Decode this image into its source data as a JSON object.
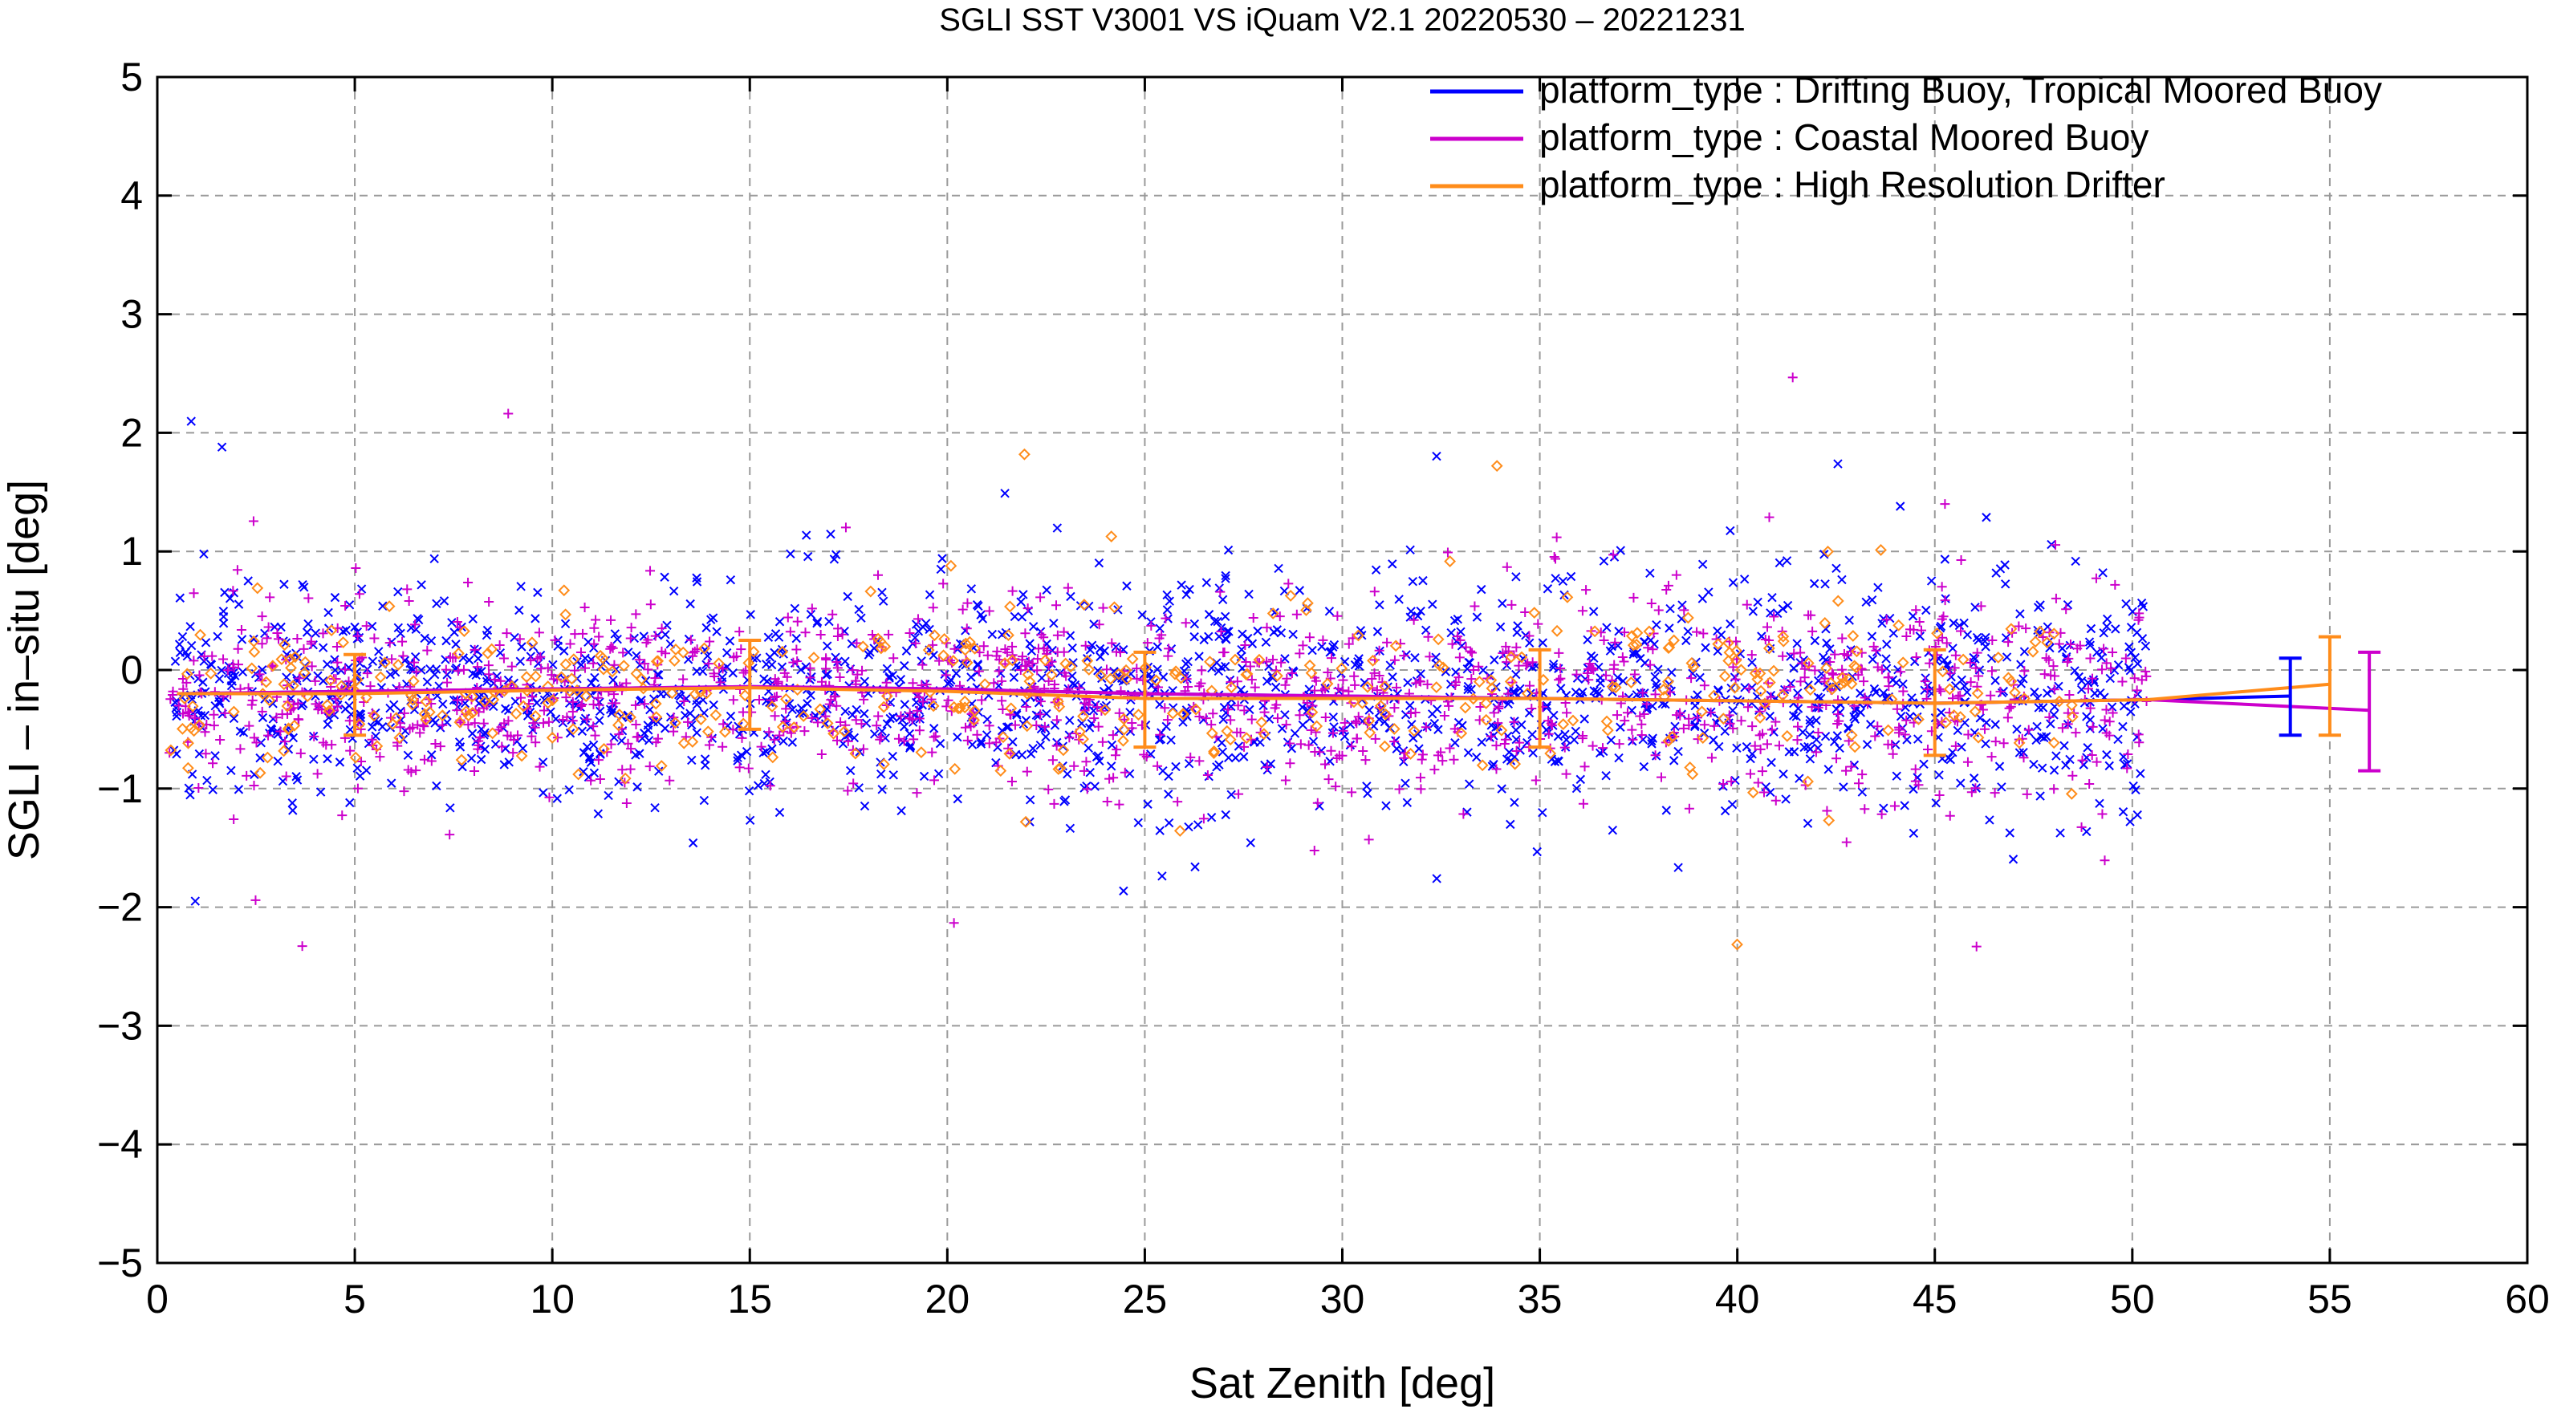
{
  "chart_data": {
    "type": "scatter",
    "title": "SGLI SST V3001 VS iQuam V2.1 20220530 – 20221231",
    "xlabel": "Sat Zenith [deg]",
    "ylabel": "SGLI – in–situ [deg]",
    "xlim": [
      0,
      60
    ],
    "ylim": [
      -5,
      5
    ],
    "xticks": [
      0,
      5,
      10,
      15,
      20,
      25,
      30,
      35,
      40,
      45,
      50,
      55,
      60
    ],
    "yticks": [
      5,
      4,
      3,
      2,
      1,
      0,
      -1,
      -2,
      -3,
      -4,
      -5
    ],
    "xtick_labels": [
      "0",
      "5",
      "10",
      "15",
      "20",
      "25",
      "30",
      "35",
      "40",
      "45",
      "50",
      "55",
      "60"
    ],
    "ytick_labels": [
      "5",
      "4",
      "3",
      "2",
      "1",
      "0",
      "−1",
      "−2",
      "−3",
      "−4",
      "−5"
    ],
    "grid": true,
    "legend_position": "top-right",
    "series": [
      {
        "name": "platform_type : Drifting Buoy, Tropical Moored Buoy",
        "color": "#0000ff",
        "marker": "x",
        "scatter_x_range": [
          0.3,
          50.4
        ],
        "scatter_center": -0.2,
        "scatter_spread": 0.45,
        "mean_x": [
          0.5,
          5,
          10,
          15,
          20,
          25,
          30,
          35,
          40,
          45,
          50.4,
          54
        ],
        "mean_y": [
          -0.2,
          -0.18,
          -0.16,
          -0.14,
          -0.16,
          -0.2,
          -0.22,
          -0.24,
          -0.26,
          -0.28,
          -0.25,
          -0.22
        ],
        "errorbars": [
          {
            "x": 54,
            "y": -0.22,
            "low": -0.55,
            "high": 0.1
          }
        ]
      },
      {
        "name": "platform_type : Coastal Moored Buoy",
        "color": "#cc00cc",
        "marker": "+",
        "scatter_x_range": [
          0.3,
          50.4
        ],
        "scatter_center": -0.2,
        "scatter_spread": 0.4,
        "mean_x": [
          0.5,
          5,
          10,
          15,
          20,
          25,
          30,
          35,
          40,
          45,
          50.4,
          56
        ],
        "mean_y": [
          -0.2,
          -0.18,
          -0.16,
          -0.14,
          -0.16,
          -0.2,
          -0.22,
          -0.24,
          -0.26,
          -0.28,
          -0.25,
          -0.34
        ],
        "errorbars": [
          {
            "x": 56,
            "y": -0.34,
            "low": -0.85,
            "high": 0.15
          }
        ]
      },
      {
        "name": "platform_type : High Resolution Drifter",
        "color": "#ff8c1a",
        "marker": "diamond",
        "scatter_x_range": [
          0.3,
          48.5
        ],
        "scatter_center": -0.2,
        "scatter_spread": 0.35,
        "mean_x": [
          0.5,
          5,
          10,
          15,
          20,
          25,
          30,
          35,
          40,
          45,
          50.4,
          55
        ],
        "mean_y": [
          -0.2,
          -0.2,
          -0.17,
          -0.15,
          -0.18,
          -0.24,
          -0.24,
          -0.24,
          -0.26,
          -0.28,
          -0.25,
          -0.12
        ],
        "errorbars": [
          {
            "x": 5,
            "y": -0.2,
            "low": -0.55,
            "high": 0.13
          },
          {
            "x": 15,
            "y": -0.15,
            "low": -0.5,
            "high": 0.25
          },
          {
            "x": 25,
            "y": -0.24,
            "low": -0.65,
            "high": 0.15
          },
          {
            "x": 35,
            "y": -0.24,
            "low": -0.65,
            "high": 0.17
          },
          {
            "x": 45,
            "y": -0.28,
            "low": -0.72,
            "high": 0.17
          },
          {
            "x": 55,
            "y": -0.12,
            "low": -0.55,
            "high": 0.28
          }
        ]
      }
    ]
  }
}
